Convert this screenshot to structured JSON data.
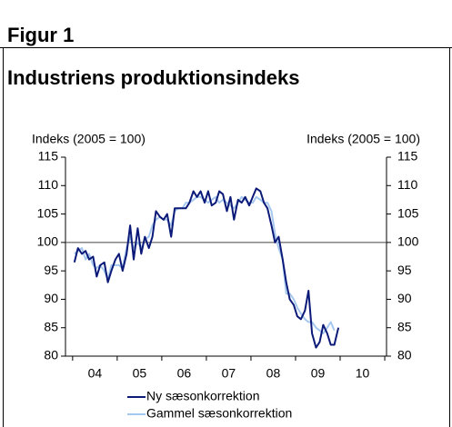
{
  "header": {
    "figure": "Figur 1"
  },
  "chart_data": {
    "type": "line",
    "title": "Industriens produktionsindeks",
    "ylabel": "Indeks (2005 = 100)",
    "y2label": "Indeks (2005 = 100)",
    "x": [
      2004.04,
      2004.12,
      2004.21,
      2004.29,
      2004.37,
      2004.46,
      2004.54,
      2004.62,
      2004.71,
      2004.79,
      2004.87,
      2004.96,
      2005.04,
      2005.12,
      2005.21,
      2005.29,
      2005.37,
      2005.46,
      2005.54,
      2005.62,
      2005.71,
      2005.79,
      2005.87,
      2005.96,
      2006.04,
      2006.12,
      2006.21,
      2006.29,
      2006.37,
      2006.46,
      2006.54,
      2006.62,
      2006.71,
      2006.79,
      2006.87,
      2006.96,
      2007.04,
      2007.12,
      2007.21,
      2007.29,
      2007.37,
      2007.46,
      2007.54,
      2007.62,
      2007.71,
      2007.79,
      2007.87,
      2007.96,
      2008.04,
      2008.12,
      2008.21,
      2008.29,
      2008.37,
      2008.46,
      2008.54,
      2008.62,
      2008.71,
      2008.79,
      2008.87,
      2008.96,
      2009.04,
      2009.12,
      2009.21,
      2009.29,
      2009.37,
      2009.46,
      2009.54,
      2009.62,
      2009.71,
      2009.79,
      2009.87,
      2009.96
    ],
    "series": [
      {
        "name": "Ny sæsonkorrektion",
        "color": "#0b1a78",
        "values": [
          96.5,
          99,
          98,
          98.5,
          97,
          97.5,
          94,
          96,
          96.5,
          93,
          95,
          97,
          98,
          95,
          98,
          103,
          97,
          102.5,
          98,
          101,
          99,
          101,
          105.5,
          104.5,
          104,
          105,
          101,
          106,
          106,
          106,
          106,
          107,
          109,
          108,
          109,
          107,
          109,
          106.5,
          107,
          109,
          108.5,
          105.5,
          108,
          104,
          107.5,
          107,
          108,
          106.5,
          108,
          109.5,
          109,
          107,
          106,
          103,
          100,
          101,
          97,
          93,
          90,
          89,
          87,
          86.5,
          88,
          91.5,
          84,
          81.5,
          82.5,
          85.5,
          84,
          82,
          82,
          85
        ]
      },
      {
        "name": "Gammel sæsonkorrektion",
        "color": "#a6c8ef",
        "values": [
          98,
          98.5,
          99,
          97,
          98,
          96,
          95.5,
          96,
          95,
          93.5,
          96,
          96,
          96,
          95.5,
          99,
          101,
          99,
          100,
          99,
          100.5,
          101,
          103,
          104,
          104.5,
          104,
          104,
          103,
          105.5,
          106,
          106,
          107,
          107,
          107.5,
          108,
          108,
          107.5,
          107,
          107.5,
          108,
          107,
          107.5,
          107,
          106.5,
          106,
          107,
          108,
          107.5,
          107,
          107,
          108,
          107.5,
          107,
          107,
          105.5,
          101.5,
          99,
          97,
          91,
          91,
          90,
          88.5,
          87.5,
          86.5,
          86,
          86,
          85,
          84.5,
          84,
          85,
          86,
          84.5,
          null
        ]
      }
    ],
    "xlim": [
      2003.84,
      2011.04
    ],
    "xticks": [
      2004,
      2005,
      2006,
      2007,
      2008,
      2009,
      2010,
      2011
    ],
    "xtick_labels": [
      {
        "value": 2004.5,
        "label": "04"
      },
      {
        "value": 2005.5,
        "label": "05"
      },
      {
        "value": 2006.5,
        "label": "06"
      },
      {
        "value": 2007.5,
        "label": "07"
      },
      {
        "value": 2008.5,
        "label": "08"
      },
      {
        "value": 2009.5,
        "label": "09"
      },
      {
        "value": 2010.5,
        "label": "10"
      }
    ],
    "ylim": [
      80,
      115
    ],
    "yticks": [
      80,
      85,
      90,
      95,
      100,
      105,
      110,
      115
    ],
    "y2lim": [
      80,
      115
    ],
    "y2ticks": [
      80,
      85,
      90,
      95,
      100,
      105,
      110,
      115
    ],
    "reference_line": 100
  }
}
